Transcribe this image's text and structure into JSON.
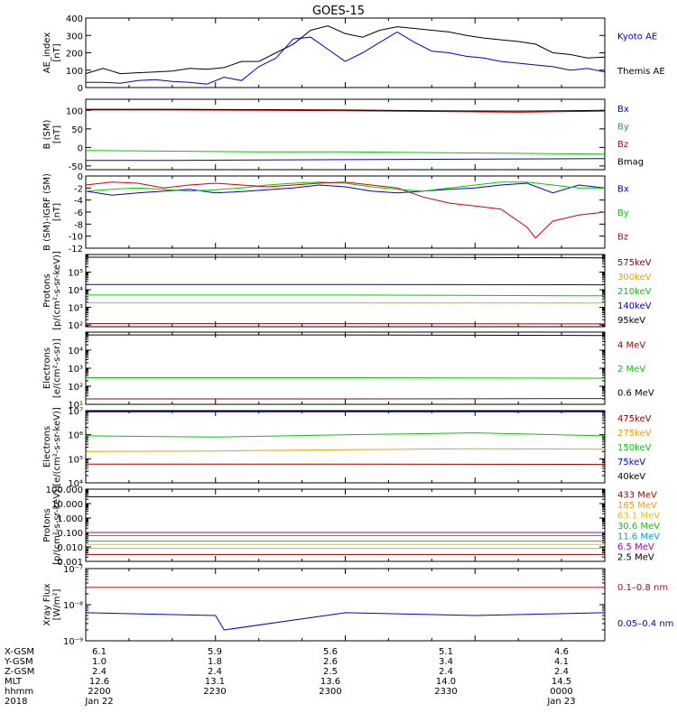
{
  "title": "GOES-15",
  "colors": {
    "black": "#000000",
    "blue": "#0000cc",
    "green": "#00cc00",
    "red": "#cc0000",
    "orange": "#ff9900",
    "teal": "#00aacc",
    "yellow": "#cccc00",
    "lightblue": "#0099ff",
    "purple": "#aa00aa",
    "darkred": "#990000"
  },
  "footer": {
    "labels": [
      "X-GSM",
      "Y-GSM",
      "Z-GSM",
      "MLT",
      "hhmm",
      "2018"
    ],
    "columns": [
      [
        "6.1",
        "1.0",
        "2.4",
        "12.6",
        "2200",
        "Jan 22"
      ],
      [
        "5.9",
        "1.8",
        "2.4",
        "13.1",
        "2230",
        ""
      ],
      [
        "5.6",
        "2.6",
        "2.5",
        "13.6",
        "2300",
        ""
      ],
      [
        "5.1",
        "3.4",
        "2.4",
        "14.0",
        "2330",
        ""
      ],
      [
        "4.6",
        "4.1",
        "2.4",
        "14.5",
        "0000",
        "Jan 23"
      ]
    ]
  },
  "chart_data": [
    {
      "type": "line",
      "ylabel": "AE_index\n[nT]",
      "ylim": [
        0,
        400
      ],
      "yscale": "linear",
      "yticks": [
        0,
        100,
        200,
        300,
        400
      ],
      "yticklabels": [
        "0",
        "100",
        "200",
        "300",
        "400"
      ],
      "series": [
        {
          "name": "Kyoto AE",
          "color": "blue",
          "x": [
            0,
            2,
            4,
            6,
            8,
            10,
            12,
            14,
            16,
            18,
            20,
            22,
            24,
            26,
            28,
            30,
            32,
            34,
            36,
            38,
            40,
            42,
            44,
            46,
            48,
            50,
            52,
            54,
            56,
            58,
            60
          ],
          "y": [
            30,
            30,
            25,
            40,
            45,
            35,
            30,
            20,
            60,
            40,
            120,
            170,
            280,
            290,
            220,
            150,
            200,
            260,
            320,
            260,
            210,
            200,
            180,
            170,
            150,
            140,
            130,
            120,
            100,
            110,
            90
          ]
        },
        {
          "name": "Themis AE",
          "color": "black",
          "x": [
            0,
            2,
            4,
            6,
            8,
            10,
            12,
            14,
            16,
            18,
            20,
            22,
            24,
            26,
            28,
            30,
            32,
            34,
            36,
            38,
            40,
            42,
            44,
            46,
            48,
            50,
            52,
            54,
            56,
            58,
            60
          ],
          "y": [
            80,
            110,
            80,
            85,
            90,
            95,
            110,
            105,
            115,
            150,
            150,
            200,
            250,
            330,
            355,
            310,
            290,
            330,
            350,
            340,
            330,
            320,
            300,
            285,
            275,
            265,
            250,
            200,
            190,
            170,
            175
          ]
        }
      ]
    },
    {
      "type": "line",
      "ylabel": "B (SM)\n[nT]",
      "ylim": [
        -60,
        130
      ],
      "yscale": "linear",
      "yticks": [
        -50,
        0,
        50,
        100
      ],
      "yticklabels": [
        "-50",
        "0",
        "50",
        "100"
      ],
      "series": [
        {
          "name": "Bx",
          "color": "blue",
          "x": [
            0,
            10,
            20,
            30,
            40,
            50,
            60
          ],
          "y": [
            -35,
            -35,
            -34,
            -33,
            -32,
            -31,
            -30
          ]
        },
        {
          "name": "By",
          "color": "green",
          "x": [
            0,
            10,
            20,
            30,
            40,
            50,
            60
          ],
          "y": [
            -8,
            -10,
            -12,
            -12,
            -14,
            -16,
            -18
          ]
        },
        {
          "name": "Bz",
          "color": "red",
          "x": [
            0,
            10,
            20,
            30,
            40,
            50,
            60
          ],
          "y": [
            101,
            101,
            100,
            99,
            97,
            95,
            98
          ]
        },
        {
          "name": "Bmag",
          "color": "black",
          "x": [
            0,
            10,
            20,
            30,
            40,
            50,
            60
          ],
          "y": [
            103,
            103,
            102,
            101,
            99,
            98,
            100
          ]
        }
      ]
    },
    {
      "type": "line",
      "ylabel": "B (SM)-IGRF (SM)\n[nT]",
      "ylim": [
        -12,
        0
      ],
      "yscale": "linear",
      "yticks": [
        -12,
        -10,
        -8,
        -6,
        -4,
        -2,
        0
      ],
      "yticklabels": [
        "-12",
        "-10",
        "-8",
        "-6",
        "-4",
        "-2",
        "0"
      ],
      "series": [
        {
          "name": "Bx",
          "color": "blue",
          "x": [
            0,
            3,
            6,
            9,
            12,
            15,
            18,
            21,
            24,
            27,
            30,
            33,
            36,
            39,
            42,
            45,
            48,
            51,
            54,
            57,
            60
          ],
          "y": [
            -2.5,
            -3.2,
            -2.8,
            -2.5,
            -2.2,
            -2.8,
            -2.6,
            -2.3,
            -2.0,
            -1.5,
            -1.8,
            -2.5,
            -2.8,
            -2.5,
            -2.2,
            -2.0,
            -1.5,
            -1.2,
            -2.8,
            -1.5,
            -2.0
          ]
        },
        {
          "name": "By",
          "color": "green",
          "x": [
            0,
            3,
            6,
            9,
            12,
            15,
            18,
            21,
            24,
            27,
            30,
            33,
            36,
            39,
            42,
            45,
            48,
            51,
            54,
            57,
            60
          ],
          "y": [
            -2.5,
            -2.2,
            -2.0,
            -2.2,
            -2.5,
            -2.3,
            -2.0,
            -1.5,
            -1.2,
            -1.0,
            -1.2,
            -1.8,
            -2.2,
            -2.5,
            -2.0,
            -1.5,
            -1.0,
            -1.0,
            -1.5,
            -2.0,
            -2.0
          ]
        },
        {
          "name": "Bz",
          "color": "red",
          "x": [
            0,
            3,
            6,
            9,
            12,
            15,
            18,
            21,
            24,
            27,
            30,
            33,
            36,
            39,
            42,
            45,
            48,
            51,
            52,
            54,
            57,
            60
          ],
          "y": [
            -1.5,
            -1.0,
            -1.2,
            -2.0,
            -1.5,
            -1.2,
            -1.5,
            -1.8,
            -1.5,
            -1.2,
            -1.0,
            -1.5,
            -2.0,
            -3.5,
            -4.5,
            -5.0,
            -5.5,
            -8.5,
            -10.3,
            -7.5,
            -6.5,
            -6.0
          ]
        }
      ]
    },
    {
      "type": "line",
      "ylabel": "Protons\n[p/(cm²-s-sr-keV)]",
      "ylim": [
        80,
        1000000
      ],
      "yscale": "log",
      "yticks": [
        100,
        1000,
        10000,
        100000
      ],
      "yticklabels": [
        "10²",
        "10³",
        "10⁴",
        "10⁵"
      ],
      "series": [
        {
          "name": "575keV",
          "color": "darkred",
          "x": [
            0,
            30,
            60
          ],
          "y": [
            120,
            120,
            115
          ]
        },
        {
          "name": "300keV",
          "color": "orange",
          "x": [
            0,
            30,
            60
          ],
          "y": [
            1800,
            1800,
            1750
          ]
        },
        {
          "name": "210keV",
          "color": "green",
          "x": [
            0,
            30,
            60
          ],
          "y": [
            5000,
            5000,
            4500
          ]
        },
        {
          "name": "140keV",
          "color": "blue",
          "x": [
            0,
            30,
            60
          ],
          "y": [
            20000,
            20000,
            19000
          ]
        },
        {
          "name": "95keV",
          "color": "black",
          "x": [
            0,
            30,
            60
          ],
          "y": [
            700000,
            700000,
            650000
          ]
        }
      ]
    },
    {
      "type": "line",
      "ylabel": "Electrons\n[e/(cm²-s-sr)]",
      "ylim": [
        10,
        100000
      ],
      "yscale": "log",
      "yticks": [
        10,
        100,
        1000,
        10000
      ],
      "yticklabels": [
        "10¹",
        "10²",
        "10³",
        "10⁴"
      ],
      "series": [
        {
          "name": "4 MeV",
          "color": "darkred",
          "x": [
            0,
            30,
            60
          ],
          "y": [
            20,
            20,
            21
          ]
        },
        {
          "name": "2 MeV",
          "color": "green",
          "x": [
            0,
            30,
            60
          ],
          "y": [
            300,
            300,
            280
          ]
        },
        {
          "name": "0.6 MeV",
          "color": "black",
          "x": [
            0,
            30,
            60
          ],
          "y": [
            70000,
            70000,
            65000
          ]
        }
      ]
    },
    {
      "type": "line",
      "ylabel": "Electrons\n[e/(cm²-s-sr-keV)]",
      "ylim": [
        10000,
        10000000
      ],
      "yscale": "log",
      "yticks": [
        10000,
        100000,
        1000000,
        10000000
      ],
      "yticklabels": [
        "10⁴",
        "10⁵",
        "10⁶",
        "10⁷"
      ],
      "series": [
        {
          "name": "475keV",
          "color": "darkred",
          "x": [
            0,
            30,
            60
          ],
          "y": [
            60000,
            60000,
            58000
          ]
        },
        {
          "name": "275keV",
          "color": "orange",
          "x": [
            0,
            15,
            30,
            45,
            60
          ],
          "y": [
            200000,
            210000,
            240000,
            260000,
            250000
          ]
        },
        {
          "name": "150keV",
          "color": "green",
          "x": [
            0,
            15,
            30,
            45,
            60
          ],
          "y": [
            900000,
            800000,
            1000000,
            1200000,
            900000
          ]
        },
        {
          "name": "75keV",
          "color": "blue",
          "x": [
            0,
            30,
            60
          ],
          "y": [
            9000000,
            9000000,
            9000000
          ]
        },
        {
          "name": "40keV",
          "color": "black",
          "x": [
            0,
            30,
            60
          ],
          "y": [
            9500000,
            9500000,
            9500000
          ]
        }
      ]
    },
    {
      "type": "line",
      "ylabel": "Protons\n[p/(cm²-s-sr-keV)]",
      "ylim": [
        0.001,
        100
      ],
      "yscale": "log",
      "yticks": [
        0.001,
        0.01,
        0.1,
        1,
        10,
        100
      ],
      "yticklabels": [
        "0.001",
        "0.010",
        "0.100",
        "1.000",
        "10.000",
        "100.000"
      ],
      "series": [
        {
          "name": "433 MeV",
          "color": "darkred",
          "x": [
            0,
            30,
            60
          ],
          "y": [
            0.003,
            0.003,
            0.003
          ]
        },
        {
          "name": "165 MeV",
          "color": "orange",
          "x": [
            0,
            30,
            60
          ],
          "y": [
            0.008,
            0.008,
            0.008
          ]
        },
        {
          "name": "63.1 MeV",
          "color": "yellow",
          "x": [
            0,
            30,
            60
          ],
          "y": [
            0.015,
            0.015,
            0.015
          ]
        },
        {
          "name": "30.6 MeV",
          "color": "green",
          "x": [
            0,
            30,
            60
          ],
          "y": [
            0.025,
            0.025,
            0.025
          ]
        },
        {
          "name": "11.6 MeV",
          "color": "lightblue",
          "x": [
            0,
            30,
            60
          ],
          "y": [
            0.06,
            0.06,
            0.06
          ]
        },
        {
          "name": "6.5 MeV",
          "color": "purple",
          "x": [
            0,
            30,
            60
          ],
          "y": [
            0.1,
            0.1,
            0.1
          ]
        },
        {
          "name": "2.5 MeV",
          "color": "black",
          "x": [
            0,
            30,
            60
          ],
          "y": [
            30,
            30,
            30
          ]
        }
      ]
    },
    {
      "type": "line",
      "ylabel": "Xray Flux\n[W/m²]",
      "ylim": [
        1e-09,
        1e-07
      ],
      "yscale": "log",
      "yticks": [
        1e-09,
        1e-08,
        1e-07
      ],
      "yticklabels": [
        "10⁻⁹",
        "10⁻⁸",
        "10⁻⁷"
      ],
      "series": [
        {
          "name": "0.1–0.8 nm",
          "color": "red",
          "x": [
            0,
            30,
            60
          ],
          "y": [
            3e-08,
            3e-08,
            3e-08
          ]
        },
        {
          "name": "0.05–0.4 nm",
          "color": "blue",
          "x": [
            0,
            15,
            16,
            30,
            45,
            60
          ],
          "y": [
            6e-09,
            5e-09,
            2e-09,
            6e-09,
            5e-09,
            6e-09
          ]
        }
      ]
    }
  ]
}
